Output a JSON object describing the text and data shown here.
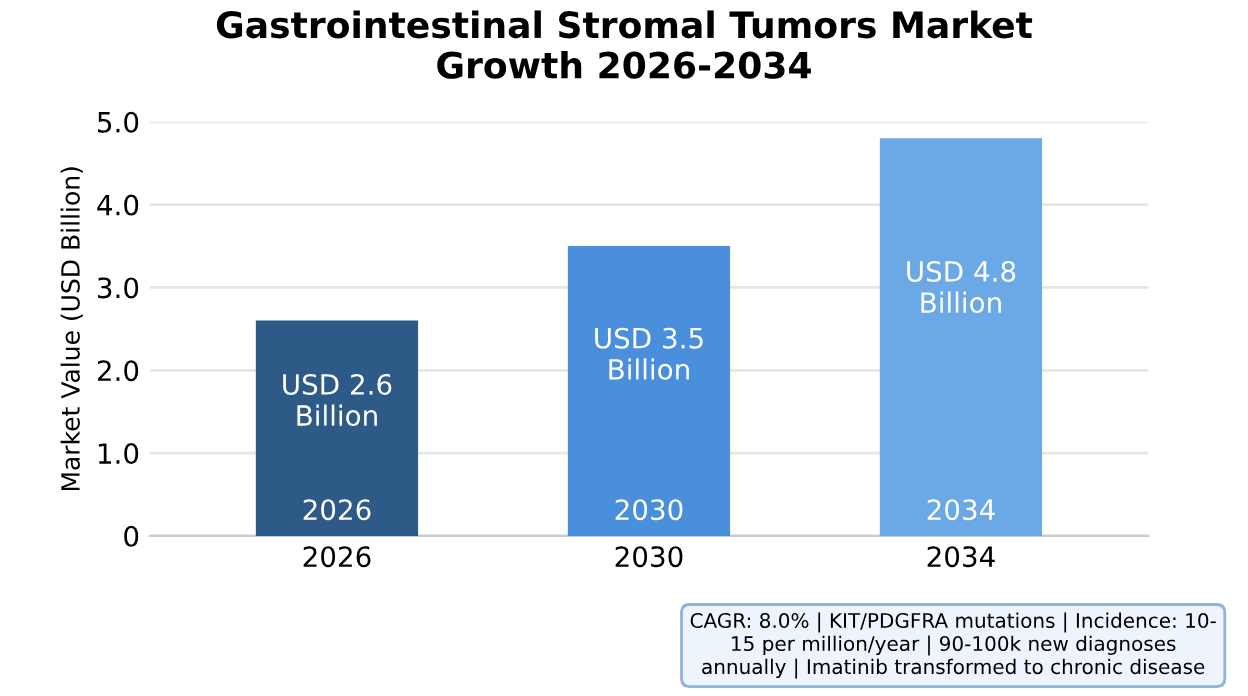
{
  "chart_data": {
    "type": "bar",
    "title": "Gastrointestinal Stromal Tumors Market\nGrowth 2026-2034",
    "ylabel": "Market Value (USD Billion)",
    "categories": [
      "2026",
      "2030",
      "2034"
    ],
    "values": [
      2.6,
      3.5,
      4.8
    ],
    "colors": [
      "#2e5a87",
      "#4a8fdc",
      "#6aa9e6"
    ],
    "value_labels": [
      "USD 2.6\nBillion",
      "USD 3.5\nBillion",
      "USD 4.8\nBillion"
    ],
    "ylim": [
      0,
      5.0
    ],
    "yticks": [
      0,
      {
        "value": 1.0,
        "label": "1.0"
      },
      {
        "value": 2.0,
        "label": "2.0"
      },
      {
        "value": 3.0,
        "label": "3.0"
      },
      {
        "value": 4.0,
        "label": "4.0"
      },
      {
        "value": 5.0,
        "label": "5.0"
      }
    ],
    "grid": "y",
    "annotations": [
      "CAGR: 8.0% | KIT/PDGFRA mutations | Incidence: 10-\n15 per million/year | 90-100k new diagnoses\nannually | Imatinib transformed to chronic disease"
    ]
  }
}
